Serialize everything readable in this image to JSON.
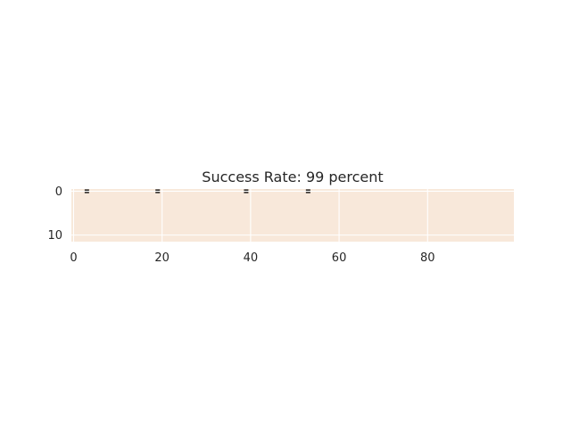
{
  "chart_data": {
    "type": "heatmap",
    "title": "Success Rate: 99 percent",
    "xlabel": "",
    "ylabel": "",
    "xlim": [
      -0.5,
      99.5
    ],
    "ylim": [
      11.5,
      -0.5
    ],
    "xticks": [
      0,
      20,
      40,
      60,
      80
    ],
    "yticks": [
      0,
      10
    ],
    "grid": true,
    "background_value": 0,
    "marked_cells": [
      {
        "row": 0,
        "col": 3
      },
      {
        "row": 0,
        "col": 19
      },
      {
        "row": 0,
        "col": 39
      },
      {
        "row": 0,
        "col": 53
      }
    ],
    "colors": {
      "fill": "#f8e8da",
      "grid": "#ffffff",
      "mark": "#000000",
      "text": "#262626"
    }
  }
}
